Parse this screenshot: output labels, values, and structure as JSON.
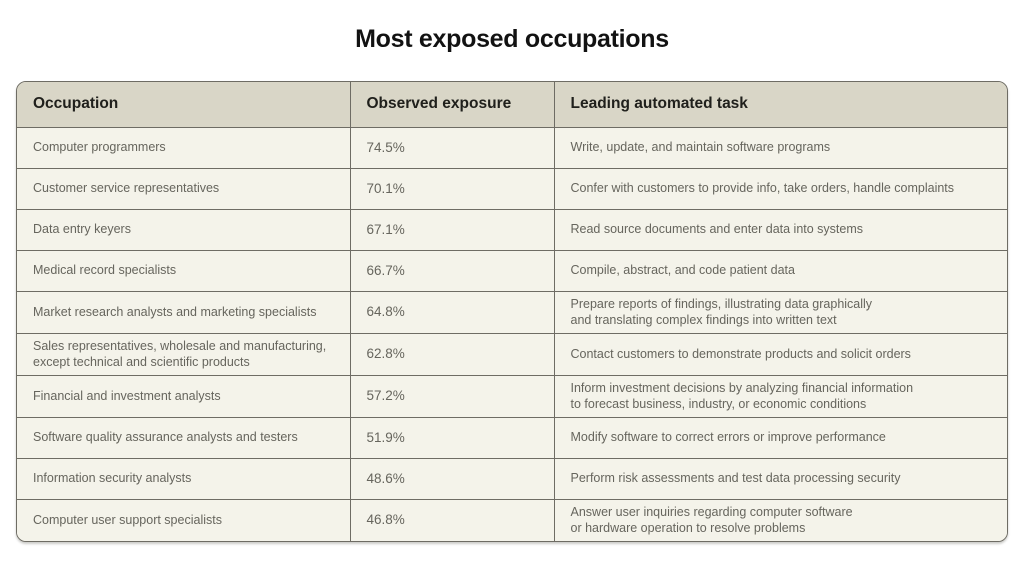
{
  "title": "Most exposed occupations",
  "colors": {
    "header_bg": "#d9d6c7",
    "row_bg": "#f4f3ea",
    "border": "#6e6c64",
    "title_text": "#121212",
    "header_text": "#20201c",
    "body_text": "#66655d"
  },
  "chart_data": {
    "type": "table",
    "title": "Most exposed occupations",
    "columns": [
      "Occupation",
      "Observed exposure",
      "Leading automated task"
    ],
    "rows": [
      {
        "occupation": "Computer programmers",
        "exposure": "74.5%",
        "task": "Write, update, and maintain software programs"
      },
      {
        "occupation": "Customer service representatives",
        "exposure": "70.1%",
        "task": "Confer with customers to provide info, take orders, handle complaints"
      },
      {
        "occupation": "Data entry keyers",
        "exposure": "67.1%",
        "task": "Read source documents and enter data into systems"
      },
      {
        "occupation": "Medical record specialists",
        "exposure": "66.7%",
        "task": "Compile, abstract, and code patient data"
      },
      {
        "occupation": "Market research analysts and marketing specialists",
        "exposure": "64.8%",
        "task": "Prepare reports of findings, illustrating data graphically\nand translating complex findings into written text"
      },
      {
        "occupation": "Sales representatives, wholesale and manufacturing,\nexcept technical and scientific products",
        "exposure": "62.8%",
        "task": "Contact customers to demonstrate products and solicit orders"
      },
      {
        "occupation": "Financial and investment analysts",
        "exposure": "57.2%",
        "task": "Inform investment decisions by analyzing financial information\nto forecast business, industry, or economic conditions"
      },
      {
        "occupation": "Software quality assurance analysts and testers",
        "exposure": "51.9%",
        "task": "Modify software to correct errors or improve performance"
      },
      {
        "occupation": "Information security analysts",
        "exposure": "48.6%",
        "task": "Perform risk assessments and test data processing security"
      },
      {
        "occupation": "Computer user support specialists",
        "exposure": "46.8%",
        "task": "Answer user inquiries regarding computer software\nor hardware operation to resolve problems"
      }
    ],
    "exposure_values_numeric": [
      74.5,
      70.1,
      67.1,
      66.7,
      64.8,
      62.8,
      57.2,
      51.9,
      48.6,
      46.8
    ]
  }
}
